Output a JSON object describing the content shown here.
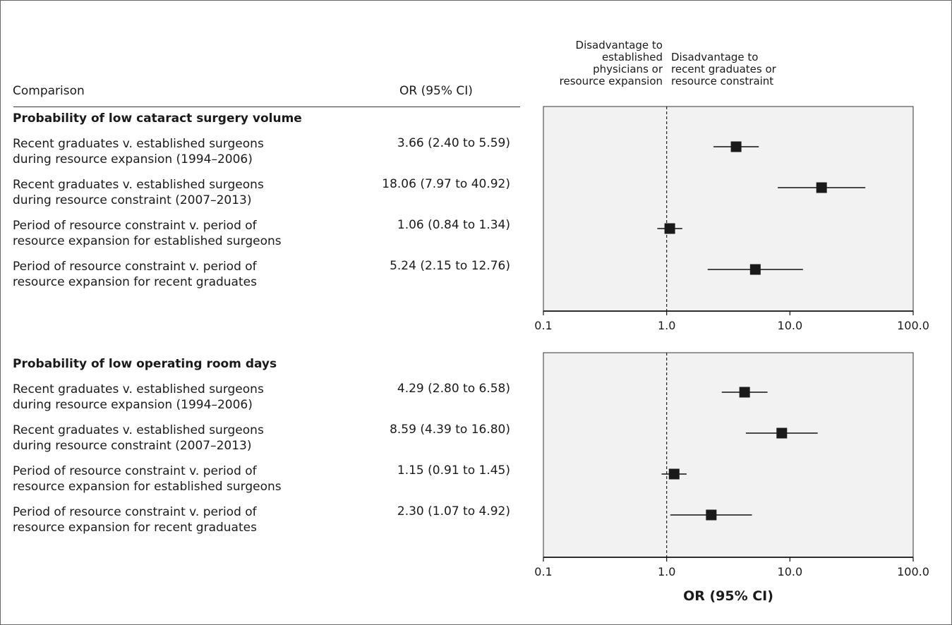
{
  "header": {
    "comparison": "Comparison",
    "or_ci": "OR (95% CI)"
  },
  "notes": {
    "left": [
      "Disadvantage to",
      "established",
      "physicians or",
      "resource expansion"
    ],
    "right": [
      "Disadvantage to",
      "recent graduates or",
      "resource constraint"
    ]
  },
  "xlabel": "OR (95% CI)",
  "chart_data": [
    {
      "type": "forest",
      "title": "Probability of low cataract surgery volume",
      "x_scale": "log",
      "xlim": [
        0.1,
        100.0
      ],
      "xticks": [
        "0.1",
        "1.0",
        "10.0",
        "100.0"
      ],
      "reference_line": 1.0,
      "rows": [
        {
          "label": [
            "Recent graduates v. established surgeons",
            "during resource expansion (1994–2006)"
          ],
          "or_text": "3.66 (2.40 to 5.59)",
          "or": 3.66,
          "lo": 2.4,
          "hi": 5.59
        },
        {
          "label": [
            "Recent graduates v. established surgeons",
            "during resource constraint (2007–2013)"
          ],
          "or_text": "18.06 (7.97 to 40.92)",
          "or": 18.06,
          "lo": 7.97,
          "hi": 40.92
        },
        {
          "label": [
            "Period of resource constraint v. period of",
            "resource expansion for established surgeons"
          ],
          "or_text": "1.06 (0.84 to 1.34)",
          "or": 1.06,
          "lo": 0.84,
          "hi": 1.34
        },
        {
          "label": [
            "Period of resource constraint v. period of",
            "resource expansion for recent graduates"
          ],
          "or_text": "5.24 (2.15 to 12.76)",
          "or": 5.24,
          "lo": 2.15,
          "hi": 12.76
        }
      ]
    },
    {
      "type": "forest",
      "title": "Probability of low operating room days",
      "x_scale": "log",
      "xlim": [
        0.1,
        100.0
      ],
      "xticks": [
        "0.1",
        "1.0",
        "10.0",
        "100.0"
      ],
      "reference_line": 1.0,
      "rows": [
        {
          "label": [
            "Recent graduates v. established surgeons",
            "during resource expansion (1994–2006)"
          ],
          "or_text": "4.29 (2.80 to 6.58)",
          "or": 4.29,
          "lo": 2.8,
          "hi": 6.58
        },
        {
          "label": [
            "Recent graduates v. established surgeons",
            "during resource constraint (2007–2013)"
          ],
          "or_text": "8.59 (4.39 to 16.80)",
          "or": 8.59,
          "lo": 4.39,
          "hi": 16.8
        },
        {
          "label": [
            "Period of resource constraint v. period of",
            "resource expansion for established surgeons"
          ],
          "or_text": "1.15 (0.91 to 1.45)",
          "or": 1.15,
          "lo": 0.91,
          "hi": 1.45
        },
        {
          "label": [
            "Period of resource constraint v. period of",
            "resource expansion for recent graduates"
          ],
          "or_text": "2.30 (1.07 to 4.92)",
          "or": 2.3,
          "lo": 1.07,
          "hi": 4.92
        }
      ]
    }
  ]
}
